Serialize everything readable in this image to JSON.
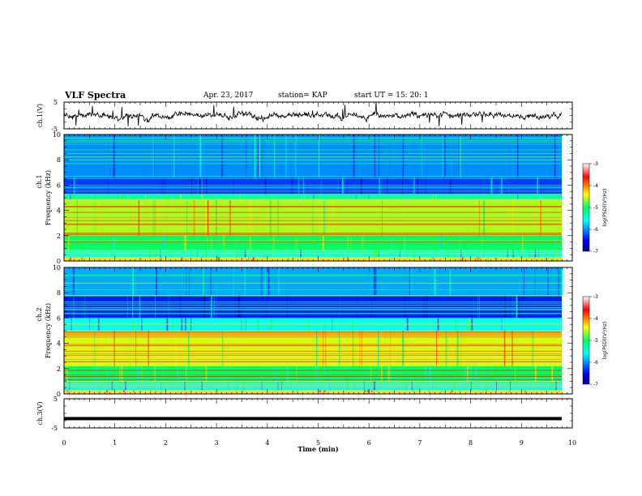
{
  "header": {
    "title": "VLF Spectra",
    "date": "Apr. 23, 2017",
    "station": "station= KAP",
    "start": "start  UT  =    15: 20: 1"
  },
  "chart_data": [
    {
      "type": "line",
      "panel": "waveform-ch1",
      "ylabel": "ch.1(V)",
      "yticks": [
        "5",
        "-5"
      ],
      "ylim": [
        -5,
        5
      ],
      "xlim": [
        0,
        10
      ],
      "series_color": "#000000"
    },
    {
      "type": "heatmap",
      "panel": "spectrogram-ch1",
      "ylabel": "ch.1\nFrequency (kHz)",
      "ylabel_lines": [
        "ch.1",
        "Frequency  (kHz)"
      ],
      "yticks": [
        "0",
        "2",
        "4",
        "6",
        "8",
        "10"
      ],
      "ylim": [
        0,
        10
      ],
      "xlim": [
        0,
        10
      ],
      "colorbar": {
        "label": "log(PSD)(V²/Hz)",
        "ticks": [
          "-3",
          "-4",
          "-5",
          "-6",
          "-7"
        ],
        "range": [
          -7,
          -3
        ]
      },
      "bands": [
        {
          "from": 0,
          "to": 0.3,
          "level": -4.3
        },
        {
          "from": 0.3,
          "to": 0.9,
          "level": -5.6
        },
        {
          "from": 0.9,
          "to": 2.0,
          "level": -5.0
        },
        {
          "from": 2.0,
          "to": 4.8,
          "level": -4.6
        },
        {
          "from": 4.8,
          "to": 5.3,
          "level": -5.3
        },
        {
          "from": 5.3,
          "to": 6.6,
          "level": -6.3
        },
        {
          "from": 6.6,
          "to": 10,
          "level": -6.0
        }
      ]
    },
    {
      "type": "heatmap",
      "panel": "spectrogram-ch2",
      "ylabel": "ch.2\nFrequency (kHz)",
      "ylabel_lines": [
        "ch.2",
        "Frequency  (kHz)"
      ],
      "yticks": [
        "0",
        "2",
        "4",
        "6",
        "8",
        "10"
      ],
      "ylim": [
        0,
        10
      ],
      "xlim": [
        0,
        10
      ],
      "colorbar": {
        "label": "log(PSD)(V²/Hz)",
        "ticks": [
          "-3",
          "-4",
          "-5",
          "-6",
          "-7"
        ],
        "range": [
          -7,
          -3
        ]
      },
      "bands": [
        {
          "from": 0,
          "to": 0.3,
          "level": -4.3
        },
        {
          "from": 0.3,
          "to": 1.0,
          "level": -5.6
        },
        {
          "from": 1.0,
          "to": 2.2,
          "level": -5.0
        },
        {
          "from": 2.2,
          "to": 5.0,
          "level": -4.5
        },
        {
          "from": 5.0,
          "to": 6.0,
          "level": -5.6
        },
        {
          "from": 6.0,
          "to": 7.8,
          "level": -6.4
        },
        {
          "from": 7.8,
          "to": 10,
          "level": -5.9
        }
      ]
    },
    {
      "type": "line",
      "panel": "waveform-ch3",
      "ylabel": "ch.3(V)",
      "yticks": [
        "5",
        "-5"
      ],
      "ylim": [
        -5,
        5
      ],
      "xlim": [
        0,
        10
      ],
      "constant_value": -1.8,
      "series_color": "#000000"
    }
  ],
  "xaxis": {
    "label": "Time  (min)",
    "ticks": [
      "0",
      "1",
      "2",
      "3",
      "4",
      "5",
      "6",
      "7",
      "8",
      "9",
      "10"
    ],
    "range": [
      0,
      10
    ]
  }
}
